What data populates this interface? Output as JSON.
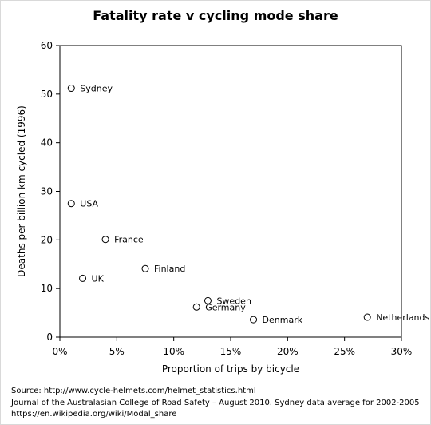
{
  "chart_data": {
    "type": "scatter",
    "title": "Fatality rate v cycling mode share",
    "xlabel": "Proportion  of trips by bicycle",
    "ylabel": "Deaths per billion km cycled (1996)",
    "xlim": [
      0,
      0.3
    ],
    "ylim": [
      0,
      60
    ],
    "xticks": [
      0,
      0.05,
      0.1,
      0.15,
      0.2,
      0.25,
      0.3
    ],
    "xtick_labels": [
      "0%",
      "5%",
      "10%",
      "15%",
      "20%",
      "25%",
      "30%"
    ],
    "yticks": [
      0,
      10,
      20,
      30,
      40,
      50,
      60
    ],
    "ytick_labels": [
      "0",
      "10",
      "20",
      "30",
      "40",
      "50",
      "60"
    ],
    "grid": false,
    "marker": "open-circle",
    "points": [
      {
        "label": "Sydney",
        "x": 0.01,
        "y": 51.2,
        "color": "#c0504d"
      },
      {
        "label": "USA",
        "x": 0.01,
        "y": 27.5,
        "color": "#000000"
      },
      {
        "label": "France",
        "x": 0.04,
        "y": 20.1,
        "color": "#000000"
      },
      {
        "label": "Finland",
        "x": 0.075,
        "y": 14.1,
        "color": "#000000"
      },
      {
        "label": "UK",
        "x": 0.02,
        "y": 12.1,
        "color": "#000000"
      },
      {
        "label": "Sweden",
        "x": 0.13,
        "y": 7.5,
        "color": "#000000"
      },
      {
        "label": "Germany",
        "x": 0.12,
        "y": 6.2,
        "color": "#000000"
      },
      {
        "label": "Denmark",
        "x": 0.17,
        "y": 3.6,
        "color": "#000000"
      },
      {
        "label": "Netherlands",
        "x": 0.27,
        "y": 4.1,
        "color": "#000000"
      }
    ]
  },
  "source": {
    "line1": "Source: http://www.cycle-helmets.com/helmet_statistics.html",
    "line2": "Journal of the Australasian College of Road Safety – August 2010. Sydney data average for 2002-2005",
    "line3": "https://en.wikipedia.org/wiki/Modal_share"
  }
}
